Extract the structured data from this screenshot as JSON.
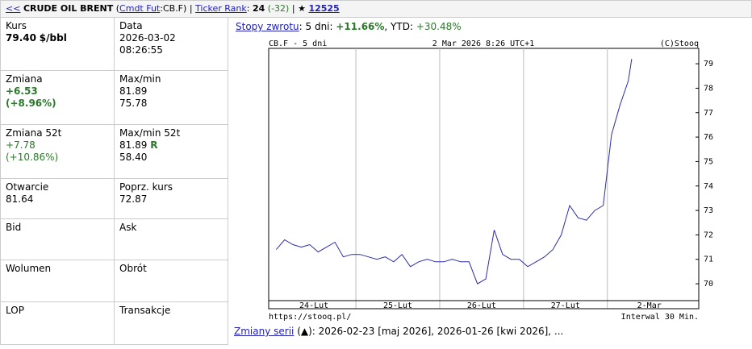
{
  "header": {
    "back": "<<",
    "name": "CRUDE OIL BRENT",
    "open": "(",
    "market": "Cmdt Fut",
    "symbol": ":CB.F)",
    "sep1": "|",
    "rank_label": "Ticker Rank",
    "rank": "24",
    "rank_change": "(-32)",
    "sep2": "|",
    "star": "★",
    "fans": "12525"
  },
  "table": {
    "rows": [
      [
        {
          "label": "Kurs",
          "value": "79.40",
          "unit": "$/bbl"
        },
        {
          "label": "Data",
          "lines": [
            "2026-03-02",
            "08:26:55"
          ]
        }
      ],
      [
        {
          "label": "Zmiana",
          "lines": [
            "+6.53",
            "(+8.96%)"
          ]
        },
        {
          "label": "Max/min",
          "lines": [
            "81.89",
            "75.78"
          ]
        }
      ],
      [
        {
          "label": "Zmiana 52t",
          "lines": [
            "+7.78",
            "(+10.86%)"
          ]
        },
        {
          "label": "Max/min 52t",
          "lines": [
            "81.89",
            "58.40"
          ],
          "flag": "R"
        }
      ],
      [
        {
          "label": "Otwarcie",
          "lines": [
            "81.64"
          ]
        },
        {
          "label": "Poprz. kurs",
          "lines": [
            "72.87"
          ]
        }
      ],
      [
        {
          "label": "Bid"
        },
        {
          "label": "Ask"
        }
      ],
      [
        {
          "label": "Wolumen"
        },
        {
          "label": "Obrót"
        }
      ],
      [
        {
          "label": "LOP"
        },
        {
          "label": "Transakcje"
        }
      ]
    ]
  },
  "returns": {
    "link": "Stopy zwrotu",
    "label": ": 5 dni:",
    "d5": "+11.66%",
    "ytd_label": ", YTD:",
    "ytd": "+30.48%"
  },
  "series_changes": {
    "link": "Zmiany serii",
    "text": "(▲): 2026-02-23 [maj 2026], 2026-01-26 [kwi 2026], ..."
  },
  "chart_data": {
    "type": "line",
    "title": "CB.F - 5 dni",
    "subtitle": "2 Mar 2026 8:26 UTC+1",
    "credit": "(C)Stooq",
    "source": "https://stooq.pl/",
    "note": "Interwal 30 Min.",
    "x": [
      0.05,
      0.15,
      0.25,
      0.35,
      0.45,
      0.55,
      0.65,
      0.75,
      0.85,
      0.95,
      1.05,
      1.15,
      1.25,
      1.35,
      1.45,
      1.55,
      1.65,
      1.75,
      1.85,
      1.95,
      2.05,
      2.15,
      2.25,
      2.35,
      2.45,
      2.55,
      2.65,
      2.75,
      2.85,
      2.95,
      3.05,
      3.15,
      3.25,
      3.35,
      3.45,
      3.55,
      3.65,
      3.75,
      3.85,
      3.95,
      4.05,
      4.15,
      4.25,
      4.29
    ],
    "series": [
      {
        "name": "CB.F",
        "color": "#2b2bb0",
        "values": [
          71.4,
          71.8,
          71.6,
          71.5,
          71.6,
          71.3,
          71.5,
          71.7,
          71.1,
          71.2,
          71.2,
          71.1,
          71.0,
          71.1,
          70.9,
          71.2,
          70.7,
          70.9,
          71.0,
          70.9,
          70.9,
          71.0,
          70.9,
          70.9,
          70.0,
          70.2,
          72.2,
          71.2,
          71.0,
          71.0,
          70.7,
          70.9,
          71.1,
          71.4,
          72.0,
          73.2,
          72.7,
          72.6,
          73.0,
          73.2,
          76.1,
          77.3,
          78.3,
          79.2
        ]
      }
    ],
    "xlim": [
      -0.04,
      5.09
    ],
    "xticks": [
      {
        "value": 0.5,
        "label": "24-Lut"
      },
      {
        "value": 1.5,
        "label": "25-Lut"
      },
      {
        "value": 2.5,
        "label": "26-Lut"
      },
      {
        "value": 3.5,
        "label": "27-Lut"
      },
      {
        "value": 4.5,
        "label": "2-Mar"
      }
    ],
    "ylim": [
      69.31,
      79.63
    ],
    "yticks": [
      70,
      71,
      72,
      73,
      74,
      75,
      76,
      77,
      78,
      79
    ]
  }
}
